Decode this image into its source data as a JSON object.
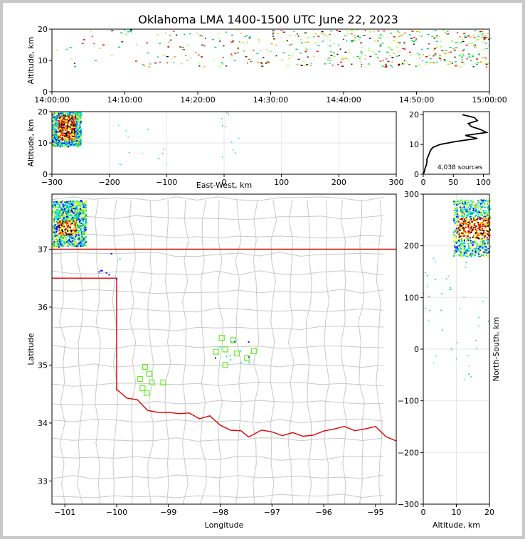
{
  "title": "Oklahoma LMA 1400-1500 UTC June 22, 2023",
  "colors": {
    "frame": "#c8c8c8",
    "county": "#c8c8c8",
    "state": "#e00000",
    "station": "#66ee22",
    "density": [
      "#0000ff",
      "#00aaff",
      "#00eeee",
      "#00cc66",
      "#99ff33",
      "#ffff00",
      "#ff9900",
      "#ff0000",
      "#990000",
      "#000000"
    ]
  },
  "chart_data": [
    {
      "id": "time-height",
      "type": "scatter",
      "xlabel": "",
      "ylabel": "Altitude, km",
      "xticks": [
        "14:00:00",
        "14:10:00",
        "14:20:00",
        "14:30:00",
        "14:40:00",
        "14:50:00",
        "15:00:00"
      ],
      "xlim_minutes": [
        0,
        60
      ],
      "ylim": [
        0,
        20
      ],
      "yticks": [
        0,
        10,
        20
      ],
      "grid": true,
      "clusters": [
        {
          "x_min": [
            0,
            60
          ],
          "alt": [
            8,
            20
          ],
          "count": 520
        }
      ]
    },
    {
      "id": "east-west-altitude",
      "type": "scatter",
      "xlabel": "East-West, km",
      "ylabel": "Altitude, km",
      "xlim": [
        -300,
        300
      ],
      "xticks": [
        -300,
        -200,
        -100,
        0,
        100,
        200,
        300
      ],
      "ylim": [
        0,
        20
      ],
      "yticks": [
        0,
        10,
        20
      ],
      "grid": true,
      "clusters": [
        {
          "x": [
            -300,
            -250
          ],
          "alt": [
            9,
            20
          ],
          "count": 900,
          "dense": [
            -290,
            -260
          ]
        },
        {
          "x": [
            -200,
            -100
          ],
          "alt": [
            3,
            16
          ],
          "count": 12
        },
        {
          "x": [
            -10,
            30
          ],
          "alt": [
            5,
            20
          ],
          "count": 10
        }
      ]
    },
    {
      "id": "altitude-histogram",
      "type": "line",
      "xlim": [
        0,
        110
      ],
      "xticks": [
        0,
        50,
        100
      ],
      "ylim": [
        0,
        21
      ],
      "yticks": [
        0,
        10,
        20
      ],
      "annotation": "4,038 sources",
      "profile": [
        [
          0,
          0
        ],
        [
          2,
          1
        ],
        [
          3,
          2
        ],
        [
          5,
          3
        ],
        [
          6,
          4
        ],
        [
          6,
          5
        ],
        [
          8,
          6
        ],
        [
          10,
          7
        ],
        [
          12,
          8
        ],
        [
          16,
          9
        ],
        [
          28,
          10
        ],
        [
          55,
          11
        ],
        [
          90,
          12
        ],
        [
          70,
          13
        ],
        [
          105,
          14
        ],
        [
          95,
          15
        ],
        [
          80,
          16
        ],
        [
          75,
          17
        ],
        [
          90,
          18
        ],
        [
          85,
          19
        ],
        [
          65,
          20
        ]
      ]
    },
    {
      "id": "plan-view",
      "type": "scatter",
      "xlabel": "Longitude",
      "ylabel": "Latitude",
      "xlim": [
        -101.25,
        -94.6
      ],
      "ylim": [
        32.6,
        37.95
      ],
      "xticks": [
        -101,
        -100,
        -99,
        -98,
        -97,
        -96,
        -95
      ],
      "yticks": [
        33,
        34,
        35,
        36,
        37
      ],
      "clusters": [
        {
          "lon": [
            -101.25,
            -100.6
          ],
          "lat": [
            37.05,
            37.85
          ],
          "count": 900,
          "dense_lon": [
            -101.15,
            -100.8
          ],
          "dense_lat": [
            37.25,
            37.5
          ]
        },
        {
          "lon": [
            -100.4,
            -99.8
          ],
          "lat": [
            36.4,
            36.95
          ],
          "count": 8
        },
        {
          "lon": [
            -98.2,
            -97.4
          ],
          "lat": [
            35.05,
            35.5
          ],
          "count": 12
        }
      ],
      "stations": [
        [
          -99.55,
          34.76
        ],
        [
          -99.5,
          34.6
        ],
        [
          -99.45,
          34.97
        ],
        [
          -99.42,
          34.52
        ],
        [
          -99.37,
          34.85
        ],
        [
          -99.32,
          34.7
        ],
        [
          -99.1,
          34.7
        ],
        [
          -98.08,
          35.23
        ],
        [
          -97.97,
          35.47
        ],
        [
          -97.9,
          35.27
        ],
        [
          -97.9,
          35.0
        ],
        [
          -97.75,
          35.43
        ],
        [
          -97.68,
          35.2
        ],
        [
          -97.48,
          35.12
        ],
        [
          -97.35,
          35.24
        ]
      ]
    },
    {
      "id": "altitude-north-south",
      "type": "scatter",
      "xlabel": "Altitude, km",
      "ylabel": "North-South, km",
      "xlim": [
        0,
        20
      ],
      "xticks": [
        0,
        10,
        20
      ],
      "ylim": [
        -300,
        300
      ],
      "yticks": [
        -300,
        -200,
        -100,
        0,
        100,
        200,
        300
      ],
      "grid": true,
      "clusters": [
        {
          "alt": [
            9,
            20
          ],
          "y": [
            180,
            290
          ],
          "count": 900,
          "dense_alt": [
            10,
            20
          ],
          "dense_y": [
            215,
            255
          ]
        },
        {
          "alt": [
            0,
            20
          ],
          "y": [
            -60,
            180
          ],
          "count": 40
        }
      ]
    }
  ]
}
